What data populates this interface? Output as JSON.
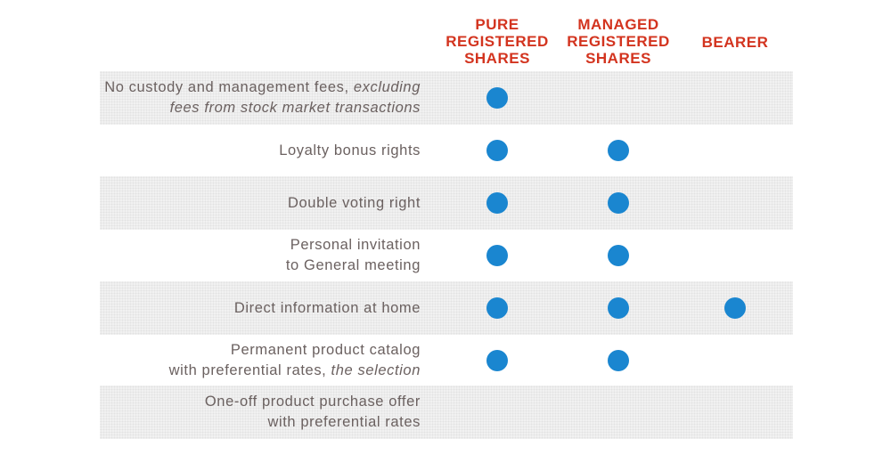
{
  "chart_data": {
    "type": "table",
    "columns": [
      {
        "key": "pure",
        "lines": [
          "PURE",
          "REGISTERED",
          "SHARES"
        ]
      },
      {
        "key": "managed",
        "lines": [
          "MANAGED",
          "REGISTERED",
          "SHARES"
        ]
      },
      {
        "key": "bearer",
        "lines": [
          "BEARER"
        ]
      }
    ],
    "rows": [
      {
        "label_lines": [
          [
            {
              "text": "No custody and management fees, "
            },
            {
              "text": "excluding",
              "italic": true
            }
          ],
          [
            {
              "text": "fees from stock market transactions",
              "italic": true
            }
          ]
        ],
        "shaded": true,
        "values": [
          true,
          false,
          false
        ]
      },
      {
        "label_lines": [
          [
            {
              "text": "Loyalty bonus rights"
            }
          ]
        ],
        "shaded": false,
        "values": [
          true,
          true,
          false
        ]
      },
      {
        "label_lines": [
          [
            {
              "text": "Double voting right"
            }
          ]
        ],
        "shaded": true,
        "values": [
          true,
          true,
          false
        ]
      },
      {
        "label_lines": [
          [
            {
              "text": "Personal invitation"
            }
          ],
          [
            {
              "text": "to General meeting"
            }
          ]
        ],
        "shaded": false,
        "values": [
          true,
          true,
          false
        ]
      },
      {
        "label_lines": [
          [
            {
              "text": "Direct information at home"
            }
          ]
        ],
        "shaded": true,
        "values": [
          true,
          true,
          true
        ]
      },
      {
        "label_lines": [
          [
            {
              "text": "Permanent product catalog"
            }
          ],
          [
            {
              "text": "with preferential rates, "
            },
            {
              "text": "the selection",
              "italic": true
            }
          ]
        ],
        "shaded": false,
        "values": [
          true,
          true,
          false
        ]
      },
      {
        "label_lines": [
          [
            {
              "text": "One-off product purchase offer"
            }
          ],
          [
            {
              "text": "with preferential rates"
            }
          ]
        ],
        "shaded": true,
        "values": [
          false,
          false,
          false
        ]
      }
    ]
  },
  "colors": {
    "header_text": "#d3341f",
    "label_text": "#6b6160",
    "dot": "#1a86d0",
    "shade": "#f1f1f1"
  }
}
